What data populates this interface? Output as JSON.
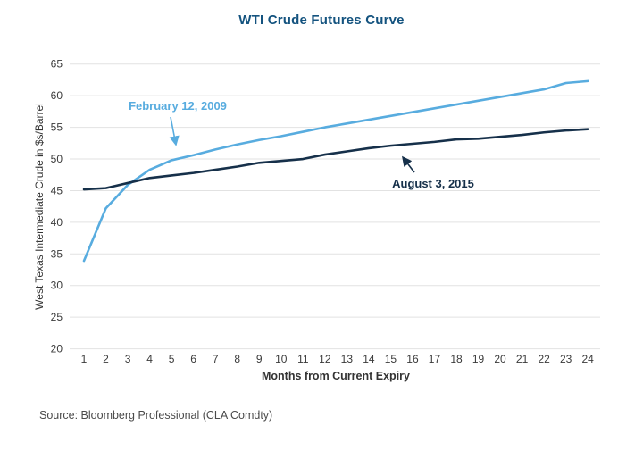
{
  "title": "WTI Crude Futures Curve",
  "source": "Source: Bloomberg Professional (CLA Comdty)",
  "colors": {
    "title": "#14537f",
    "axis_text": "#3a3a3a",
    "grid": "#e2e2e2",
    "source_text": "#4a4a4a",
    "series_feb_2009": "#58acdf",
    "series_aug_2015": "#16304a",
    "background": "#ffffff"
  },
  "chart_data": {
    "type": "line",
    "title": "WTI Crude Futures Curve",
    "xlabel": "Months from Current Expiry",
    "ylabel": "West Texas Intermediate Crude in $s/Barrel",
    "xlim": [
      1,
      24
    ],
    "ylim": [
      20,
      65
    ],
    "ytick_step": 5,
    "grid": "horizontal-only",
    "legend_position": "inline-annotations-with-arrows",
    "x": [
      1,
      2,
      3,
      4,
      5,
      6,
      7,
      8,
      9,
      10,
      11,
      12,
      13,
      14,
      15,
      16,
      17,
      18,
      19,
      20,
      21,
      22,
      23,
      24
    ],
    "series": [
      {
        "name": "February 12, 2009",
        "color": "#58acdf",
        "values": [
          33.9,
          42.2,
          45.9,
          48.3,
          49.8,
          50.6,
          51.5,
          52.3,
          53.0,
          53.6,
          54.3,
          55.0,
          55.6,
          56.2,
          56.8,
          57.4,
          58.0,
          58.6,
          59.2,
          59.8,
          60.4,
          61.0,
          62.0,
          62.3
        ]
      },
      {
        "name": "August 3, 2015",
        "color": "#16304a",
        "values": [
          45.2,
          45.4,
          46.2,
          47.0,
          47.4,
          47.8,
          48.3,
          48.8,
          49.4,
          49.7,
          50.0,
          50.7,
          51.2,
          51.7,
          52.1,
          52.4,
          52.7,
          53.1,
          53.2,
          53.5,
          53.8,
          54.2,
          54.5,
          54.7
        ]
      }
    ]
  }
}
